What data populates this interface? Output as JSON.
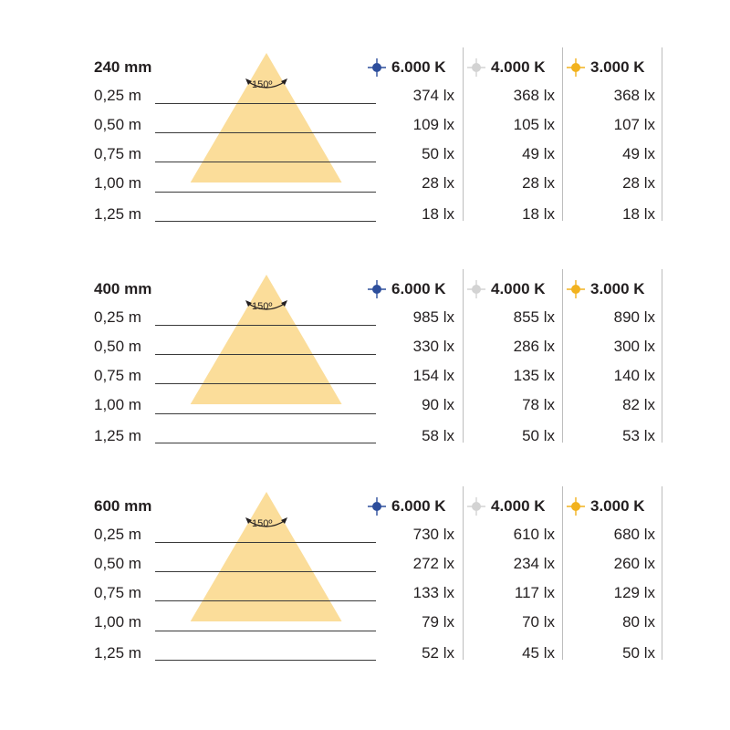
{
  "colors": {
    "beam": "#fbdd9a",
    "k6000": "#2d4e9c",
    "k4000": "#d3d3d3",
    "k3000": "#f2b21e",
    "line": "#3a3a3a",
    "separator": "#bdbdbd"
  },
  "icons": {
    "k6000": "sparkle-icon",
    "k4000": "sparkle-icon",
    "k3000": "sparkle-icon"
  },
  "columns": [
    {
      "key": "k6000",
      "label": "6.000 K"
    },
    {
      "key": "k4000",
      "label": "4.000 K"
    },
    {
      "key": "k3000",
      "label": "3.000 K"
    }
  ],
  "beam_angle": "150º",
  "distances": [
    "0,25 m",
    "0,50 m",
    "0,75 m",
    "1,00 m",
    "1,25 m"
  ],
  "panels": [
    {
      "title": "240 mm",
      "values": [
        [
          "374 lx",
          "368 lx",
          "368 lx"
        ],
        [
          "109 lx",
          "105 lx",
          "107 lx"
        ],
        [
          "50 lx",
          "49 lx",
          "49 lx"
        ],
        [
          "28 lx",
          "28 lx",
          "28 lx"
        ],
        [
          "18 lx",
          "18 lx",
          "18 lx"
        ]
      ]
    },
    {
      "title": "400 mm",
      "values": [
        [
          "985 lx",
          "855 lx",
          "890 lx"
        ],
        [
          "330 lx",
          "286 lx",
          "300 lx"
        ],
        [
          "154 lx",
          "135 lx",
          "140 lx"
        ],
        [
          "90 lx",
          "78 lx",
          "82 lx"
        ],
        [
          "58 lx",
          "50 lx",
          "53 lx"
        ]
      ]
    },
    {
      "title": "600 mm",
      "values": [
        [
          "730 lx",
          "610 lx",
          "680 lx"
        ],
        [
          "272 lx",
          "234 lx",
          "260 lx"
        ],
        [
          "133 lx",
          "117 lx",
          "129 lx"
        ],
        [
          "79 lx",
          "70 lx",
          "80 lx"
        ],
        [
          "52 lx",
          "45 lx",
          "50 lx"
        ]
      ]
    }
  ]
}
